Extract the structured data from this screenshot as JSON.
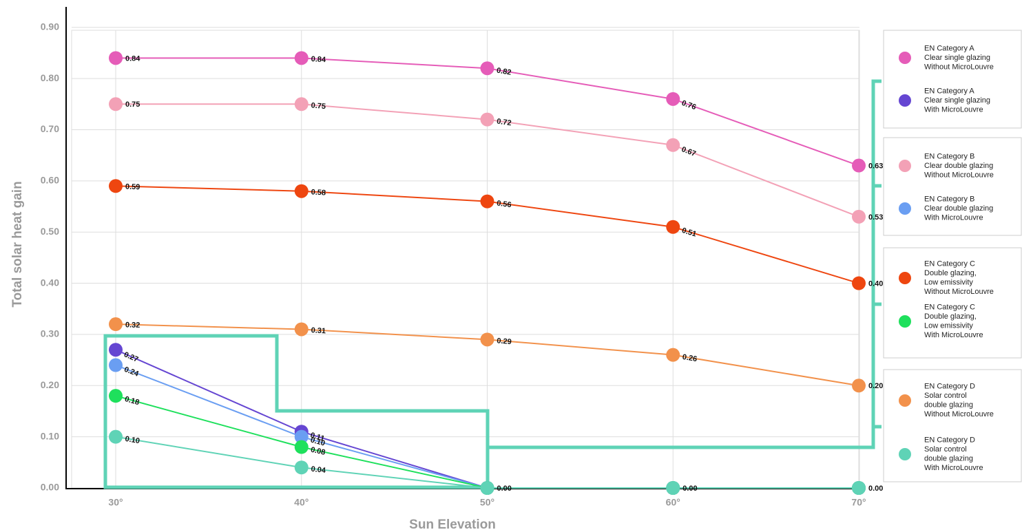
{
  "chart_data": {
    "type": "line",
    "ylabel": "Total solar heat gain",
    "xlabel": "Sun Elevation",
    "categories": [
      "30°",
      "40°",
      "50°",
      "60°",
      "70°"
    ],
    "ylim": [
      0,
      0.94
    ],
    "yticks": [
      {
        "value": 0,
        "label": "0.00"
      },
      {
        "value": 0.1,
        "label": "0.10"
      },
      {
        "value": 0.2,
        "label": "0.20"
      },
      {
        "value": 0.3,
        "label": "0.30"
      },
      {
        "value": 0.4,
        "label": "0.40"
      },
      {
        "value": 0.5,
        "label": "0.50"
      },
      {
        "value": 0.6,
        "label": "0.60"
      },
      {
        "value": 0.7,
        "label": "0.70"
      },
      {
        "value": 0.8,
        "label": "0.80"
      },
      {
        "value": 0.9,
        "label": "0.90"
      }
    ],
    "grid": true,
    "series": [
      {
        "name": [
          "EN Category A",
          "Clear single glazing",
          "Without MicroLouvre"
        ],
        "color": "#e55cb8",
        "values": [
          0.84,
          0.84,
          0.82,
          0.76,
          0.63
        ],
        "value_labels": [
          "0.84",
          "0.84",
          "0.82",
          "0.76",
          "0.63"
        ]
      },
      {
        "name": [
          "EN Category A",
          "Clear single glazing",
          "With MicroLouvre"
        ],
        "color": "#6546d2",
        "values": [
          0.27,
          0.11,
          0,
          0,
          0
        ],
        "value_labels": [
          "0.27",
          "0.11",
          null,
          null,
          null
        ]
      },
      {
        "name": [
          "EN Category B",
          "Clear double glazing",
          "Without MicroLouvre"
        ],
        "color": "#f3a1b6",
        "values": [
          0.75,
          0.75,
          0.72,
          0.67,
          0.53
        ],
        "value_labels": [
          "0.75",
          "0.75",
          "0.72",
          "0.67",
          "0.53"
        ]
      },
      {
        "name": [
          "EN Category B",
          "Clear double glazing",
          "With MicroLouvre"
        ],
        "color": "#6a9ef2",
        "values": [
          0.24,
          0.1,
          0,
          0,
          0
        ],
        "value_labels": [
          "0.24",
          "0.10",
          null,
          null,
          null
        ]
      },
      {
        "name": [
          "EN Category C",
          "Double glazing,",
          "Low emissivity",
          "Without MicroLouvre"
        ],
        "color": "#ee4610",
        "values": [
          0.59,
          0.58,
          0.56,
          0.51,
          0.4
        ],
        "value_labels": [
          "0.59",
          "0.58",
          "0.56",
          "0.51",
          "0.40"
        ]
      },
      {
        "name": [
          "EN Category C",
          "Double glazing,",
          "Low emissivity",
          "With MicroLouvre"
        ],
        "color": "#1ee05c",
        "values": [
          0.18,
          0.08,
          0,
          0,
          0
        ],
        "value_labels": [
          "0.18",
          "0.08",
          null,
          null,
          null
        ]
      },
      {
        "name": [
          "EN Category D",
          "Solar control",
          "double glazing",
          "Without MicroLouvre"
        ],
        "color": "#f2914b",
        "values": [
          0.32,
          0.31,
          0.29,
          0.26,
          0.2
        ],
        "value_labels": [
          "0.32",
          "0.31",
          "0.29",
          "0.26",
          "0.20"
        ]
      },
      {
        "name": [
          "EN Category D",
          "Solar control",
          "double glazing",
          "With MicroLouvre"
        ],
        "color": "#5fd3b6",
        "values": [
          0.1,
          0.04,
          0,
          0,
          0
        ],
        "value_labels": [
          "0.10",
          "0.04",
          "0.00",
          "0.00",
          "0.00"
        ]
      }
    ]
  }
}
